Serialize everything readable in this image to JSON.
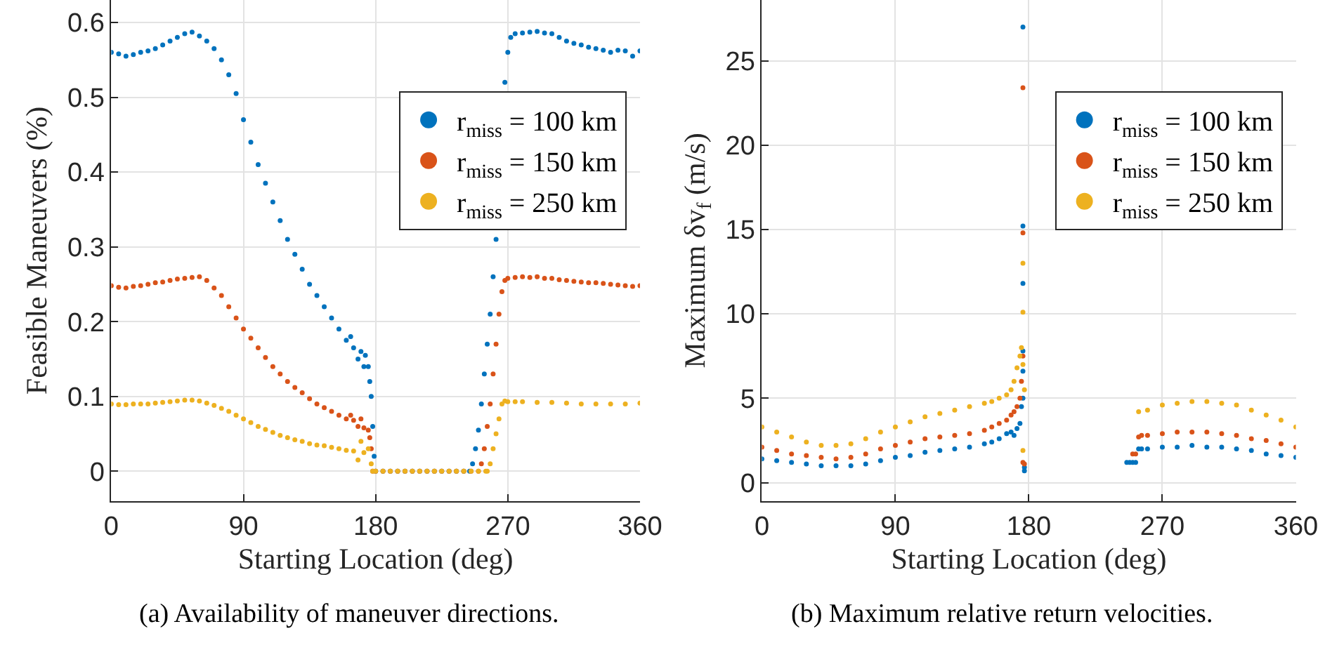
{
  "chart_data": [
    {
      "type": "scatter",
      "xlabel": "Starting Location (deg)",
      "ylabel": "Feasible Maneuvers (%)",
      "annotations": [
        "(a) Availability of maneuver directions."
      ],
      "xlim": [
        0,
        360
      ],
      "xticks": [
        0,
        90,
        180,
        270,
        360
      ],
      "ylim": [
        -0.04,
        0.63
      ],
      "yticks": [
        0,
        0.1,
        0.2,
        0.3,
        0.4,
        0.5,
        0.6
      ],
      "grid": true,
      "legend": "top right",
      "marker": "circle",
      "series": [
        {
          "name": "r$_{miss}$ = 100 km",
          "color": "#0072bd",
          "x": [
            0,
            5,
            10,
            15,
            20,
            25,
            30,
            35,
            40,
            45,
            50,
            55,
            60,
            65,
            70,
            75,
            80,
            85,
            90,
            95,
            100,
            105,
            110,
            115,
            120,
            125,
            130,
            135,
            140,
            145,
            150,
            155,
            160,
            163,
            165,
            168,
            170,
            172,
            173,
            175,
            176,
            177,
            178,
            179,
            180,
            185,
            190,
            195,
            200,
            205,
            210,
            215,
            220,
            225,
            230,
            235,
            240,
            244,
            246,
            248,
            250,
            252,
            254,
            256,
            258,
            260,
            262,
            264,
            266,
            268,
            270,
            272,
            275,
            280,
            285,
            290,
            295,
            300,
            305,
            310,
            315,
            320,
            325,
            330,
            335,
            340,
            345,
            350,
            355,
            360
          ],
          "values": [
            0.56,
            0.558,
            0.555,
            0.557,
            0.56,
            0.562,
            0.565,
            0.57,
            0.575,
            0.58,
            0.585,
            0.587,
            0.582,
            0.575,
            0.565,
            0.55,
            0.53,
            0.505,
            0.47,
            0.44,
            0.41,
            0.385,
            0.36,
            0.335,
            0.31,
            0.29,
            0.27,
            0.25,
            0.235,
            0.22,
            0.205,
            0.19,
            0.175,
            0.18,
            0.165,
            0.15,
            0.16,
            0.14,
            0.155,
            0.14,
            0.12,
            0.1,
            0.06,
            0.02,
            0,
            0,
            0,
            0,
            0,
            0,
            0,
            0,
            0,
            0,
            0,
            0,
            0,
            0,
            0.01,
            0.03,
            0.055,
            0.09,
            0.13,
            0.17,
            0.21,
            0.26,
            0.31,
            null,
            null,
            0.52,
            0.56,
            0.58,
            0.585,
            0.586,
            0.587,
            0.588,
            0.586,
            0.585,
            0.58,
            0.575,
            0.572,
            0.57,
            0.567,
            0.565,
            0.563,
            0.56,
            0.563,
            0.562,
            0.555,
            0.562
          ]
        },
        {
          "name": "r$_{miss}$ = 150 km",
          "color": "#d95319",
          "x": [
            0,
            5,
            10,
            15,
            20,
            25,
            30,
            35,
            40,
            45,
            50,
            55,
            60,
            65,
            70,
            75,
            80,
            85,
            90,
            95,
            100,
            105,
            110,
            115,
            120,
            125,
            130,
            135,
            140,
            145,
            150,
            155,
            160,
            163,
            165,
            168,
            170,
            172,
            175,
            176,
            177,
            178,
            180,
            185,
            190,
            195,
            200,
            205,
            210,
            215,
            220,
            225,
            230,
            235,
            240,
            245,
            250,
            252,
            254,
            256,
            258,
            260,
            262,
            264,
            266,
            268,
            270,
            275,
            280,
            285,
            290,
            295,
            300,
            305,
            310,
            315,
            320,
            325,
            330,
            335,
            340,
            345,
            350,
            355,
            360
          ],
          "values": [
            0.248,
            0.246,
            0.245,
            0.247,
            0.248,
            0.25,
            0.252,
            0.253,
            0.255,
            0.257,
            0.258,
            0.259,
            0.26,
            0.255,
            0.245,
            0.235,
            0.22,
            0.205,
            0.19,
            0.178,
            0.165,
            0.152,
            0.14,
            0.13,
            0.12,
            0.112,
            0.105,
            0.097,
            0.09,
            0.085,
            0.08,
            0.075,
            0.07,
            0.075,
            0.068,
            0.06,
            0.07,
            0.058,
            0.055,
            0.045,
            0.03,
            0,
            0,
            0,
            0,
            0,
            0,
            0,
            0,
            0,
            0,
            0,
            0,
            0,
            0,
            0,
            0,
            0.01,
            0.03,
            0.06,
            0.09,
            0.13,
            0.17,
            0.21,
            0.24,
            0.255,
            0.258,
            0.259,
            0.26,
            0.259,
            0.26,
            0.258,
            0.258,
            0.256,
            0.255,
            0.254,
            0.253,
            0.252,
            0.252,
            0.251,
            0.25,
            0.249,
            0.248,
            0.247,
            0.248
          ]
        },
        {
          "name": "r$_{miss}$ = 250 km",
          "color": "#edb120",
          "x": [
            0,
            5,
            10,
            15,
            20,
            25,
            30,
            35,
            40,
            45,
            50,
            55,
            60,
            65,
            70,
            75,
            80,
            85,
            90,
            95,
            100,
            105,
            110,
            115,
            120,
            125,
            130,
            135,
            140,
            145,
            150,
            155,
            160,
            165,
            168,
            170,
            172,
            175,
            177,
            178,
            180,
            185,
            190,
            195,
            200,
            205,
            210,
            215,
            220,
            225,
            230,
            235,
            240,
            245,
            250,
            255,
            256,
            258,
            260,
            262,
            264,
            266,
            268,
            270,
            275,
            280,
            290,
            300,
            310,
            320,
            330,
            340,
            350,
            360
          ],
          "values": [
            0.09,
            0.089,
            0.089,
            0.09,
            0.09,
            0.09,
            0.091,
            0.092,
            0.093,
            0.094,
            0.095,
            0.095,
            0.094,
            0.091,
            0.088,
            0.084,
            0.08,
            0.075,
            0.07,
            0.065,
            0.06,
            0.056,
            0.052,
            0.048,
            0.045,
            0.042,
            0.04,
            0.037,
            0.035,
            0.034,
            0.032,
            0.03,
            0.028,
            0.027,
            0.015,
            0.04,
            0.025,
            0.03,
            0.01,
            0,
            0,
            0,
            0,
            0,
            0,
            0,
            0,
            0,
            0,
            0,
            0,
            0,
            0,
            0,
            0,
            0,
            0,
            0.01,
            0.03,
            0.05,
            0.07,
            0.09,
            0.094,
            0.093,
            0.093,
            0.093,
            0.092,
            0.092,
            0.091,
            0.09,
            0.09,
            0.09,
            0.09,
            0.091
          ]
        }
      ]
    },
    {
      "type": "scatter",
      "xlabel": "Starting Location (deg)",
      "ylabel": "Maximum δv$_{f}$ (m/s)",
      "annotations": [
        "(b) Maximum relative return velocities."
      ],
      "xlim": [
        0,
        360
      ],
      "xticks": [
        0,
        90,
        180,
        270,
        360
      ],
      "ylim": [
        -1.1,
        28.6
      ],
      "yticks": [
        0,
        5,
        10,
        15,
        20,
        25
      ],
      "grid": true,
      "legend": "top right",
      "marker": "circle",
      "series": [
        {
          "name": "r$_{miss}$ = 100 km",
          "color": "#0072bd",
          "x": [
            0,
            10,
            20,
            30,
            40,
            50,
            60,
            70,
            80,
            90,
            100,
            110,
            120,
            130,
            140,
            150,
            155,
            160,
            165,
            168,
            170,
            172,
            174,
            175,
            176,
            176,
            176,
            176,
            176,
            176,
            177,
            177,
            246,
            248,
            250,
            252,
            254,
            256,
            260,
            270,
            280,
            290,
            300,
            310,
            320,
            330,
            340,
            350,
            360
          ],
          "values": [
            1.4,
            1.3,
            1.2,
            1.1,
            1.0,
            1.0,
            1.0,
            1.1,
            1.3,
            1.5,
            1.6,
            1.8,
            1.9,
            2.0,
            2.1,
            2.3,
            2.4,
            2.6,
            2.9,
            3.0,
            2.8,
            3.2,
            3.5,
            4.5,
            6.6,
            7.8,
            11.8,
            15.2,
            27,
            5,
            0.9,
            0.7,
            1.2,
            1.2,
            1.2,
            1.2,
            2.0,
            2.0,
            2.0,
            2.1,
            2.1,
            2.2,
            2.1,
            2.1,
            2.0,
            1.9,
            1.7,
            1.6,
            1.5
          ]
        },
        {
          "name": "r$_{miss}$ = 150 km",
          "color": "#d95319",
          "x": [
            0,
            10,
            20,
            30,
            40,
            50,
            60,
            70,
            80,
            90,
            100,
            110,
            120,
            130,
            140,
            150,
            155,
            160,
            165,
            168,
            170,
            172,
            174,
            175,
            176,
            176,
            176,
            176,
            177,
            250,
            252,
            254,
            256,
            260,
            270,
            280,
            290,
            300,
            310,
            320,
            330,
            340,
            350,
            360
          ],
          "values": [
            2.1,
            1.9,
            1.7,
            1.6,
            1.5,
            1.4,
            1.5,
            1.7,
            2.0,
            2.2,
            2.4,
            2.6,
            2.7,
            2.8,
            2.9,
            3.1,
            3.3,
            3.5,
            3.7,
            4.0,
            4.2,
            4.5,
            5.0,
            6.0,
            7.5,
            14.8,
            23.4,
            1.2,
            1.1,
            1.7,
            1.7,
            2.7,
            2.8,
            2.8,
            2.9,
            3.0,
            3.0,
            3.0,
            2.9,
            2.8,
            2.6,
            2.5,
            2.3,
            2.1
          ]
        },
        {
          "name": "r$_{miss}$ = 250 km",
          "color": "#edb120",
          "x": [
            0,
            10,
            20,
            30,
            40,
            50,
            60,
            70,
            80,
            90,
            100,
            110,
            120,
            130,
            140,
            150,
            155,
            160,
            165,
            168,
            170,
            172,
            174,
            175,
            176,
            176,
            176,
            176,
            177,
            254,
            260,
            270,
            280,
            290,
            300,
            310,
            320,
            330,
            340,
            350,
            360
          ],
          "values": [
            3.3,
            3.0,
            2.7,
            2.4,
            2.2,
            2.2,
            2.3,
            2.6,
            3.0,
            3.3,
            3.6,
            3.9,
            4.1,
            4.3,
            4.5,
            4.7,
            4.8,
            5.0,
            5.2,
            5.5,
            6.0,
            6.8,
            7.5,
            8.0,
            10.1,
            13,
            7.0,
            1.9,
            5.5,
            4.2,
            4.3,
            4.6,
            4.7,
            4.8,
            4.8,
            4.7,
            4.6,
            4.3,
            4.0,
            3.7,
            3.3
          ]
        }
      ]
    }
  ]
}
